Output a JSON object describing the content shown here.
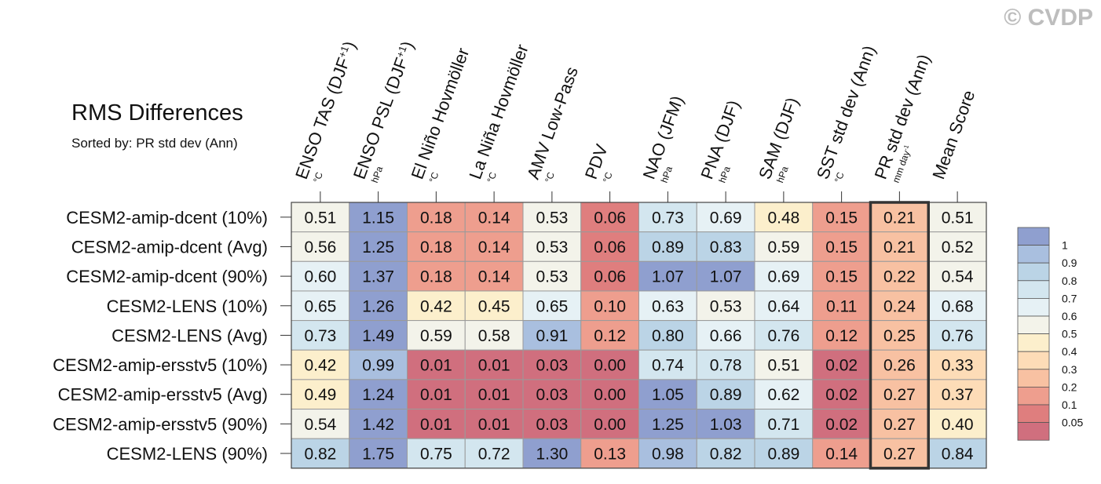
{
  "header": {
    "title": "RMS Differences",
    "subtitle": "Sorted by: PR std dev (Ann)",
    "copyright": "© CVDP"
  },
  "chart_data": {
    "type": "heatmap",
    "title": "RMS Differences",
    "subtitle": "Sorted by: PR std dev (Ann)",
    "columns": [
      {
        "label": "ENSO TAS (DJF",
        "sup": "+1",
        "tail": ")",
        "unit": "°C"
      },
      {
        "label": "ENSO PSL (DJF",
        "sup": "+1",
        "tail": ")",
        "unit": "hPa"
      },
      {
        "label": "El Niño Hovmöller",
        "sup": "",
        "tail": "",
        "unit": "°C"
      },
      {
        "label": "La Niña Hovmöller",
        "sup": "",
        "tail": "",
        "unit": "°C"
      },
      {
        "label": "AMV Low-Pass",
        "sup": "",
        "tail": "",
        "unit": "°C"
      },
      {
        "label": "PDV",
        "sup": "",
        "tail": "",
        "unit": "°C"
      },
      {
        "label": "NAO (JFM)",
        "sup": "",
        "tail": "",
        "unit": "hPa"
      },
      {
        "label": "PNA (DJF)",
        "sup": "",
        "tail": "",
        "unit": "hPa"
      },
      {
        "label": "SAM (DJF)",
        "sup": "",
        "tail": "",
        "unit": "hPa"
      },
      {
        "label": "SST std dev (Ann)",
        "sup": "",
        "tail": "",
        "unit": "°C"
      },
      {
        "label": "PR std dev (Ann)",
        "sup": "",
        "tail": "",
        "unit": "mm day",
        "unit_sup": "-1"
      },
      {
        "label": "Mean Score",
        "sup": "",
        "tail": "",
        "unit": ""
      }
    ],
    "highlighted_column": "PR std dev (Ann)",
    "rows": [
      {
        "name": "CESM2-amip-dcent (10%)",
        "values": [
          "0.51",
          "1.15",
          "0.18",
          "0.14",
          "0.53",
          "0.06",
          "0.73",
          "0.69",
          "0.48",
          "0.15",
          "0.21",
          "0.51"
        ]
      },
      {
        "name": "CESM2-amip-dcent (Avg)",
        "values": [
          "0.56",
          "1.25",
          "0.18",
          "0.14",
          "0.53",
          "0.06",
          "0.89",
          "0.83",
          "0.59",
          "0.15",
          "0.21",
          "0.52"
        ]
      },
      {
        "name": "CESM2-amip-dcent (90%)",
        "values": [
          "0.60",
          "1.37",
          "0.18",
          "0.14",
          "0.53",
          "0.06",
          "1.07",
          "1.07",
          "0.69",
          "0.15",
          "0.22",
          "0.54"
        ]
      },
      {
        "name": "CESM2-LENS (10%)",
        "values": [
          "0.65",
          "1.26",
          "0.42",
          "0.45",
          "0.65",
          "0.10",
          "0.63",
          "0.53",
          "0.64",
          "0.11",
          "0.24",
          "0.68"
        ]
      },
      {
        "name": "CESM2-LENS (Avg)",
        "values": [
          "0.73",
          "1.49",
          "0.59",
          "0.58",
          "0.91",
          "0.12",
          "0.80",
          "0.66",
          "0.76",
          "0.12",
          "0.25",
          "0.76"
        ]
      },
      {
        "name": "CESM2-amip-ersstv5 (10%)",
        "values": [
          "0.42",
          "0.99",
          "0.01",
          "0.01",
          "0.03",
          "0.00",
          "0.74",
          "0.78",
          "0.51",
          "0.02",
          "0.26",
          "0.33"
        ]
      },
      {
        "name": "CESM2-amip-ersstv5 (Avg)",
        "values": [
          "0.49",
          "1.24",
          "0.01",
          "0.01",
          "0.03",
          "0.00",
          "1.05",
          "0.89",
          "0.62",
          "0.02",
          "0.27",
          "0.37"
        ]
      },
      {
        "name": "CESM2-amip-ersstv5 (90%)",
        "values": [
          "0.54",
          "1.42",
          "0.01",
          "0.01",
          "0.03",
          "0.00",
          "1.25",
          "1.03",
          "0.71",
          "0.02",
          "0.27",
          "0.40"
        ]
      },
      {
        "name": "CESM2-LENS (90%)",
        "values": [
          "0.82",
          "1.75",
          "0.75",
          "0.72",
          "1.30",
          "0.13",
          "0.98",
          "0.82",
          "0.89",
          "0.14",
          "0.27",
          "0.84"
        ]
      }
    ],
    "colorbar": {
      "levels": [
        "1",
        "0.9",
        "0.8",
        "0.7",
        "0.6",
        "0.5",
        "0.4",
        "0.3",
        "0.2",
        "0.1",
        "0.05"
      ],
      "colors": [
        "#8f9fcf",
        "#a9bfdf",
        "#bbd4e6",
        "#d3e6ef",
        "#e6f1f5",
        "#f3f3ea",
        "#fcefcc",
        "#fddcb7",
        "#f8c1a2",
        "#ee9e8e",
        "#df7e7e",
        "#d06f7e"
      ]
    }
  }
}
